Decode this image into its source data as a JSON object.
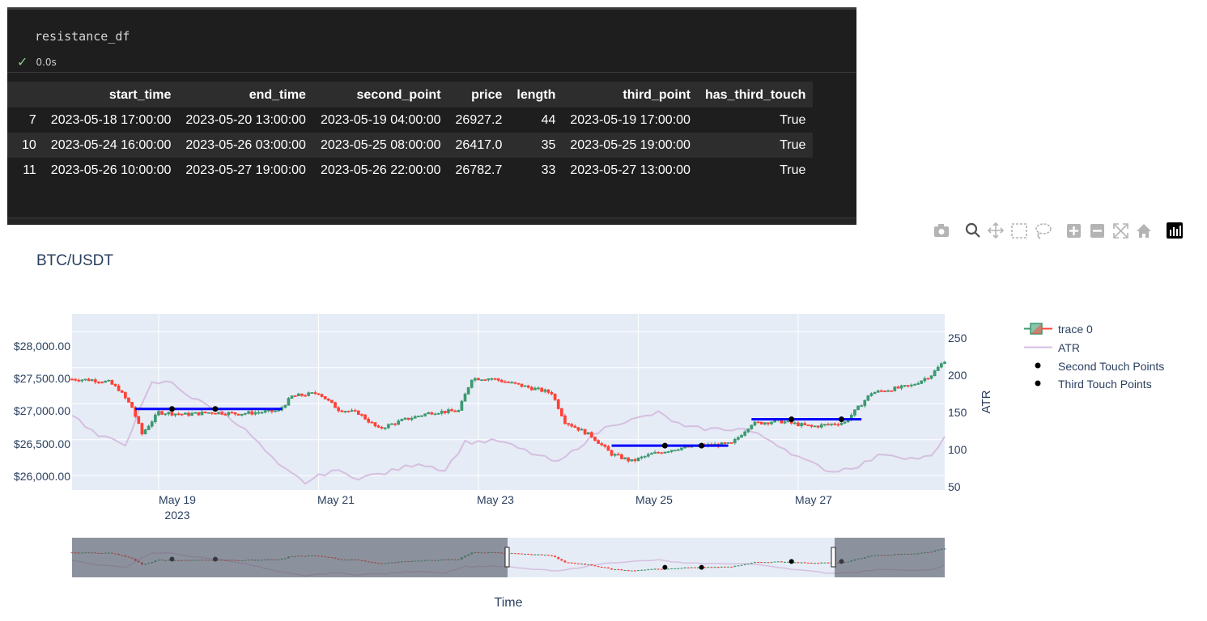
{
  "notebook": {
    "code": "resistance_df",
    "exec_time": "0.0s",
    "table": {
      "columns": [
        "",
        "start_time",
        "end_time",
        "second_point",
        "price",
        "length",
        "third_point",
        "has_third_touch"
      ],
      "rows": [
        [
          "7",
          "2023-05-18 17:00:00",
          "2023-05-20 13:00:00",
          "2023-05-19 04:00:00",
          "26927.2",
          "44",
          "2023-05-19 17:00:00",
          "True"
        ],
        [
          "10",
          "2023-05-24 16:00:00",
          "2023-05-26 03:00:00",
          "2023-05-25 08:00:00",
          "26417.0",
          "35",
          "2023-05-25 19:00:00",
          "True"
        ],
        [
          "11",
          "2023-05-26 10:00:00",
          "2023-05-27 19:00:00",
          "2023-05-26 22:00:00",
          "26782.7",
          "33",
          "2023-05-27 13:00:00",
          "True"
        ]
      ]
    }
  },
  "toolbar": {
    "icons": [
      "camera-icon",
      "zoom-icon",
      "pan-icon",
      "box-select-icon",
      "lasso-select-icon",
      "zoom-in-icon",
      "zoom-out-icon",
      "autoscale-icon",
      "reset-axes-icon",
      "plotly-logo-icon"
    ]
  },
  "chart_data": {
    "type": "candlestick",
    "title": "BTC/USDT",
    "xlabel": "Time",
    "ylabel_left": "",
    "ylabel_right": "ATR",
    "x_ticks": [
      "May 19\n2023",
      "May 21",
      "May 23",
      "May 25",
      "May 27"
    ],
    "y_ticks_left": [
      "$26,000.00",
      "$26,500.00",
      "$27,000.00",
      "$27,500.00",
      "$28,000.00"
    ],
    "y_ticks_right": [
      "50",
      "100",
      "150",
      "200",
      "250"
    ],
    "ylim_left": [
      25800,
      28250
    ],
    "ylim_right": [
      45,
      285
    ],
    "xlim": [
      "2023-05-17 22:00",
      "2023-05-28 20:00"
    ],
    "legend": {
      "position": "top-right",
      "entries": [
        "trace 0",
        "ATR",
        "Second Touch Points",
        "Third Touch Points"
      ]
    },
    "colors": {
      "increasing": "#3d9970",
      "decreasing": "#ff4136",
      "atr": "#d6bfe0",
      "resistance": "#0000ff",
      "points": "#000000",
      "plot_bg": "#e5ecf6"
    },
    "close_anchors": [
      [
        "2023-05-17 22:00",
        27340
      ],
      [
        "2023-05-18 04:00",
        27330
      ],
      [
        "2023-05-18 09:00",
        27300
      ],
      [
        "2023-05-18 12:00",
        27200
      ],
      [
        "2023-05-18 16:00",
        26950
      ],
      [
        "2023-05-18 19:00",
        26580
      ],
      [
        "2023-05-19 00:00",
        26880
      ],
      [
        "2023-05-19 08:00",
        26850
      ],
      [
        "2023-05-19 16:00",
        26880
      ],
      [
        "2023-05-20 00:00",
        26860
      ],
      [
        "2023-05-20 12:00",
        26900
      ],
      [
        "2023-05-20 16:00",
        27100
      ],
      [
        "2023-05-21 00:00",
        27150
      ],
      [
        "2023-05-21 06:00",
        26920
      ],
      [
        "2023-05-21 12:00",
        26870
      ],
      [
        "2023-05-21 18:00",
        26650
      ],
      [
        "2023-05-22 02:00",
        26780
      ],
      [
        "2023-05-22 10:00",
        26880
      ],
      [
        "2023-05-22 18:00",
        26900
      ],
      [
        "2023-05-22 22:00",
        27350
      ],
      [
        "2023-05-23 04:00",
        27350
      ],
      [
        "2023-05-23 12:00",
        27260
      ],
      [
        "2023-05-23 22:00",
        27150
      ],
      [
        "2023-05-24 02:00",
        26750
      ],
      [
        "2023-05-24 10:00",
        26550
      ],
      [
        "2023-05-24 16:00",
        26300
      ],
      [
        "2023-05-24 22:00",
        26200
      ],
      [
        "2023-05-25 04:00",
        26300
      ],
      [
        "2023-05-25 12:00",
        26380
      ],
      [
        "2023-05-25 20:00",
        26420
      ],
      [
        "2023-05-26 04:00",
        26440
      ],
      [
        "2023-05-26 10:00",
        26720
      ],
      [
        "2023-05-26 18:00",
        26760
      ],
      [
        "2023-05-27 04:00",
        26680
      ],
      [
        "2023-05-27 14:00",
        26740
      ],
      [
        "2023-05-27 22:00",
        27150
      ],
      [
        "2023-05-28 10:00",
        27250
      ],
      [
        "2023-05-28 16:00",
        27400
      ],
      [
        "2023-05-28 20:00",
        27600
      ]
    ],
    "atr_anchors": [
      [
        "2023-05-17 22:00",
        148
      ],
      [
        "2023-05-18 06:00",
        118
      ],
      [
        "2023-05-18 14:00",
        108
      ],
      [
        "2023-05-18 18:00",
        150
      ],
      [
        "2023-05-18 22:00",
        190
      ],
      [
        "2023-05-19 04:00",
        192
      ],
      [
        "2023-05-19 10:00",
        170
      ],
      [
        "2023-05-19 20:00",
        150
      ],
      [
        "2023-05-20 04:00",
        118
      ],
      [
        "2023-05-20 12:00",
        78
      ],
      [
        "2023-05-20 20:00",
        55
      ],
      [
        "2023-05-21 04:00",
        72
      ],
      [
        "2023-05-21 12:00",
        62
      ],
      [
        "2023-05-21 20:00",
        68
      ],
      [
        "2023-05-22 06:00",
        82
      ],
      [
        "2023-05-22 14:00",
        72
      ],
      [
        "2023-05-22 20:00",
        110
      ],
      [
        "2023-05-23 06:00",
        112
      ],
      [
        "2023-05-23 16:00",
        95
      ],
      [
        "2023-05-24 00:00",
        82
      ],
      [
        "2023-05-24 10:00",
        118
      ],
      [
        "2023-05-24 16:00",
        135
      ],
      [
        "2023-05-24 22:00",
        140
      ],
      [
        "2023-05-25 06:00",
        150
      ],
      [
        "2023-05-25 14:00",
        130
      ],
      [
        "2023-05-25 22:00",
        128
      ],
      [
        "2023-05-26 08:00",
        128
      ],
      [
        "2023-05-26 16:00",
        112
      ],
      [
        "2023-05-27 02:00",
        85
      ],
      [
        "2023-05-27 10:00",
        70
      ],
      [
        "2023-05-27 18:00",
        78
      ],
      [
        "2023-05-28 02:00",
        95
      ],
      [
        "2023-05-28 10:00",
        88
      ],
      [
        "2023-05-28 16:00",
        90
      ],
      [
        "2023-05-28 20:00",
        115
      ]
    ],
    "resistance_lines": [
      {
        "start": "2023-05-18 17:00",
        "end": "2023-05-20 13:00",
        "price": 26927.2
      },
      {
        "start": "2023-05-24 16:00",
        "end": "2023-05-26 03:00",
        "price": 26417.0
      },
      {
        "start": "2023-05-26 10:00",
        "end": "2023-05-27 19:00",
        "price": 26782.7
      }
    ],
    "second_touch_points": [
      [
        "2023-05-19 04:00",
        26927.2
      ],
      [
        "2023-05-25 08:00",
        26417.0
      ],
      [
        "2023-05-26 22:00",
        26782.7
      ]
    ],
    "third_touch_points": [
      [
        "2023-05-19 17:00",
        26927.2
      ],
      [
        "2023-05-25 19:00",
        26417.0
      ],
      [
        "2023-05-27 13:00",
        26782.7
      ]
    ],
    "rangeslider": {
      "selected": [
        "2023-05-17 22:00",
        "2023-05-28 20:00"
      ]
    }
  }
}
